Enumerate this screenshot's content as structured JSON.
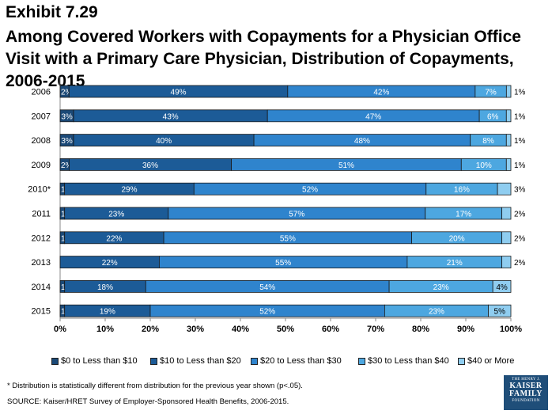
{
  "title": {
    "exhibit": "Exhibit 7.29",
    "main": "Among Covered Workers with Copayments for a Physician Office Visit with a Primary Care Physician, Distribution of Copayments, 2006-2015"
  },
  "colors": {
    "s1": "#1b4977",
    "s2": "#1c5b97",
    "s3": "#2f84cd",
    "s4": "#4da7e0",
    "s5": "#8fcdf0"
  },
  "chart_data": {
    "type": "bar",
    "orientation": "horizontal",
    "stacked": true,
    "categories": [
      "2006",
      "2007",
      "2008",
      "2009",
      "2010*",
      "2011",
      "2012",
      "2013",
      "2014",
      "2015"
    ],
    "series": [
      {
        "name": "$0 to Less than $10",
        "values": [
          2,
          3,
          3,
          2,
          1,
          1,
          1,
          0,
          1,
          1
        ],
        "labels": [
          "2%",
          "3%",
          "3%",
          "2%",
          "1%",
          "1%",
          "1%",
          "",
          "1%",
          "1%"
        ]
      },
      {
        "name": "$10 to Less than $20",
        "values": [
          49,
          43,
          40,
          36,
          29,
          23,
          22,
          22,
          18,
          19
        ],
        "labels": [
          "49%",
          "43%",
          "40%",
          "36%",
          "29%",
          "23%",
          "22%",
          "22%",
          "18%",
          "19%"
        ]
      },
      {
        "name": "$20 to Less than $30",
        "values": [
          42,
          47,
          48,
          51,
          52,
          57,
          55,
          55,
          54,
          52
        ],
        "labels": [
          "42%",
          "47%",
          "48%",
          "51%",
          "52%",
          "57%",
          "55%",
          "55%",
          "54%",
          "52%"
        ]
      },
      {
        "name": "$30 to Less than $40",
        "values": [
          7,
          6,
          8,
          10,
          16,
          17,
          20,
          21,
          23,
          23
        ],
        "labels": [
          "7%",
          "6%",
          "8%",
          "10%",
          "16%",
          "17%",
          "20%",
          "21%",
          "23%",
          "23%"
        ]
      },
      {
        "name": "$40 or More",
        "values": [
          1,
          1,
          1,
          1,
          3,
          2,
          2,
          2,
          4,
          5
        ],
        "labels": [
          "1%",
          "1%",
          "1%",
          "1%",
          "3%",
          "2%",
          "2%",
          "2%",
          "4%",
          "5%"
        ]
      }
    ],
    "xlim": [
      0,
      100
    ],
    "xticks": [
      "0%",
      "10%",
      "20%",
      "30%",
      "40%",
      "50%",
      "60%",
      "70%",
      "80%",
      "90%",
      "100%"
    ],
    "legend_position": "bottom",
    "grid": false
  },
  "footnote": "* Distribution is statistically different from distribution for the previous year shown (p<.05).",
  "source": "SOURCE:  Kaiser/HRET Survey of Employer-Sponsored Health Benefits, 2006-2015.",
  "logo": {
    "line1": "THE HENRY J.",
    "line2": "KAISER",
    "line3": "FAMILY",
    "line4": "FOUNDATION"
  }
}
